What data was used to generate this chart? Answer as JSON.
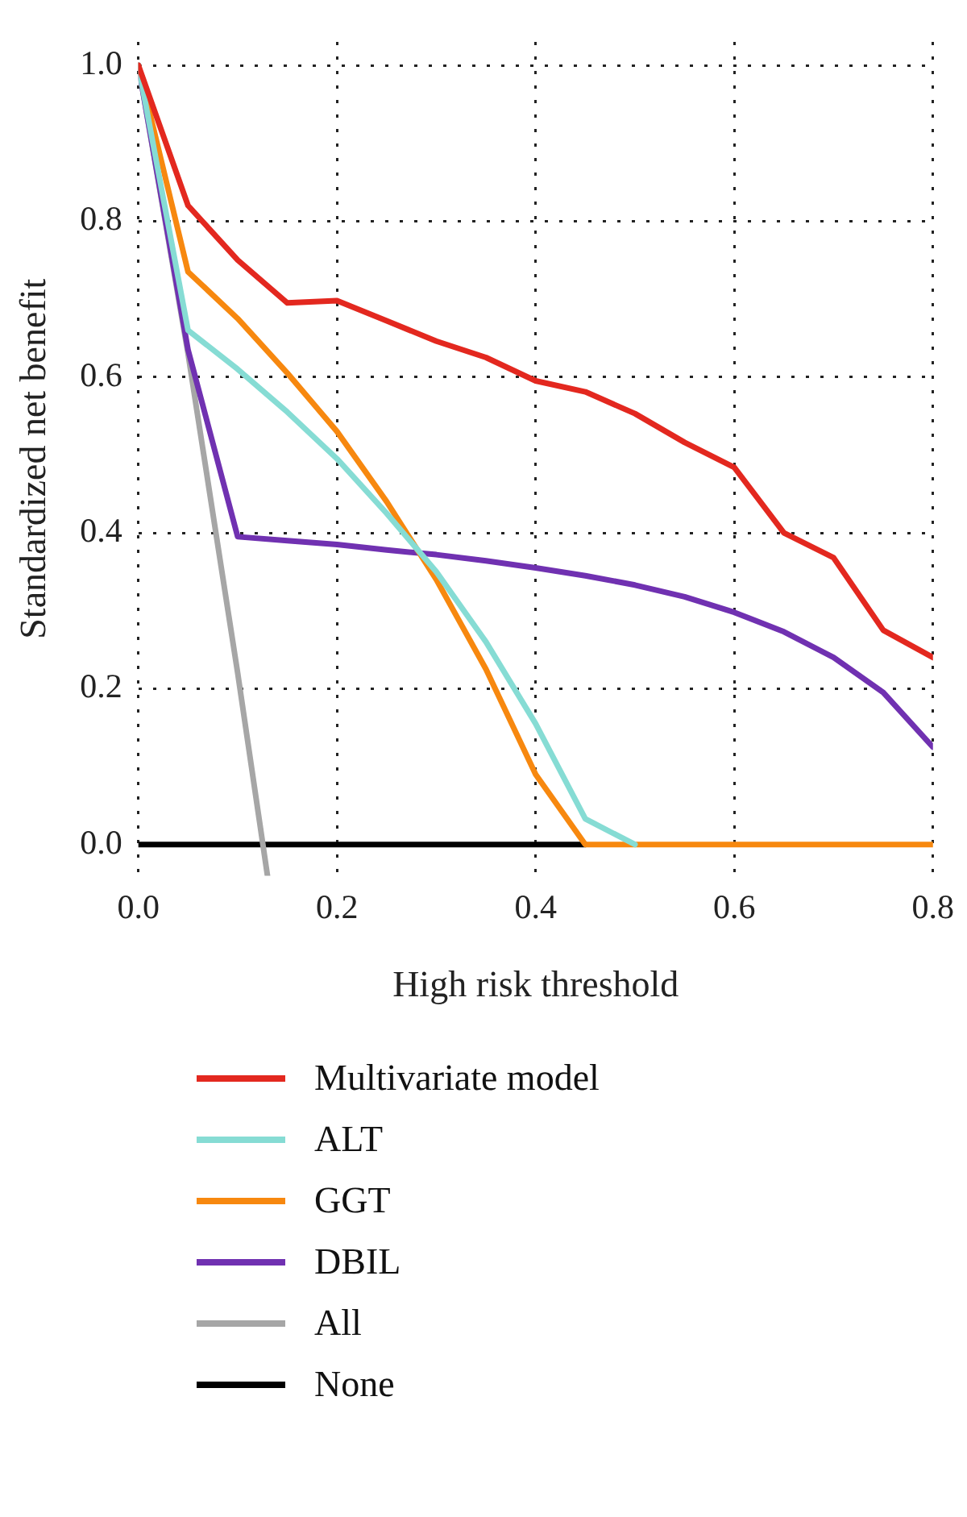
{
  "chart_data": {
    "type": "line",
    "xlabel": "High risk threshold",
    "ylabel": "Standardized net benefit",
    "x": [
      0,
      0.05,
      0.1,
      0.15,
      0.2,
      0.25,
      0.3,
      0.35,
      0.4,
      0.45,
      0.5,
      0.55,
      0.6,
      0.65,
      0.7,
      0.75,
      0.8
    ],
    "series": [
      {
        "name": "Multivariate model",
        "color": "#e3281f",
        "values": [
          1.0,
          0.82,
          0.75,
          0.695,
          0.698,
          0.672,
          0.646,
          0.625,
          0.595,
          0.581,
          0.553,
          0.516,
          0.484,
          0.4,
          0.368,
          0.275,
          0.24
        ]
      },
      {
        "name": "ALT",
        "color": "#86dcd4",
        "values": [
          1.0,
          0.66,
          0.61,
          0.555,
          0.495,
          0.425,
          0.35,
          0.26,
          0.155,
          0.033,
          0,
          null,
          null,
          null,
          null,
          null,
          null
        ]
      },
      {
        "name": "GGT",
        "color": "#f7880f",
        "values": [
          1.0,
          0.735,
          0.675,
          0.605,
          0.53,
          0.44,
          0.34,
          0.225,
          0.09,
          0,
          0,
          0,
          0,
          0,
          0,
          0,
          0
        ]
      },
      {
        "name": "DBIL",
        "color": "#7031b1",
        "values": [
          1.0,
          0.635,
          0.395,
          0.39,
          0.385,
          0.378,
          0.372,
          0.364,
          0.355,
          0.345,
          0.333,
          0.318,
          0.298,
          0.273,
          0.24,
          0.195,
          0.125
        ]
      },
      {
        "name": "All",
        "color": "#a6a6a6",
        "x": [
          0,
          0.05,
          0.1,
          0.13
        ],
        "values": [
          1.0,
          0.63,
          0.22,
          -0.04
        ]
      },
      {
        "name": "None",
        "color": "#000000",
        "x": [
          0,
          0.45
        ],
        "values": [
          0,
          0
        ]
      }
    ],
    "xlim": [
      0,
      0.8
    ],
    "xticks": [
      {
        "value": 0,
        "label": "0.0"
      },
      0.2,
      0.4,
      0.6,
      0.8
    ],
    "ylim": [
      -0.04,
      1.03
    ],
    "yticks": [
      {
        "value": 0,
        "label": "0.0"
      },
      0.2,
      0.4,
      0.6,
      0.8,
      {
        "value": 1,
        "label": "1.0"
      }
    ],
    "grid": true,
    "legend": "bottom",
    "marker": "none",
    "line_style": "solid"
  }
}
